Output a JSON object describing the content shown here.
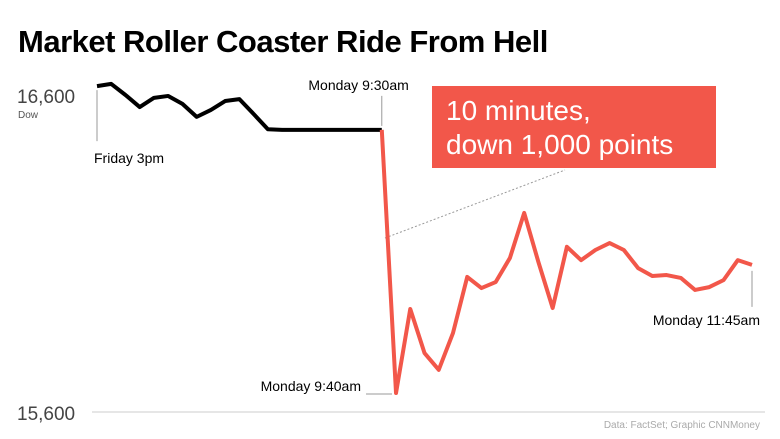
{
  "chart_data": {
    "type": "line",
    "title": "Market Roller Coaster Ride From Hell",
    "y_axis_label": "Dow",
    "source": "Data: FactSet; Graphic CNNMoney",
    "callout": [
      "10 minutes,",
      "down 1,000 points"
    ],
    "callout_color": "#f2574a",
    "categories": [
      "Friday 3pm",
      null,
      null,
      null,
      null,
      null,
      null,
      null,
      null,
      null,
      null,
      null,
      null,
      null,
      null,
      null,
      null,
      null,
      null,
      null,
      "Monday 9:30am",
      "Monday 9:40am",
      null,
      null,
      null,
      null,
      null,
      null,
      null,
      null,
      null,
      null,
      null,
      null,
      null,
      null,
      null,
      null,
      null,
      null,
      null,
      null,
      null,
      null,
      null,
      null,
      "Monday 11:45am"
    ],
    "series": [
      {
        "color": "#000000",
        "values": [
          16628,
          16635,
          16600,
          16562,
          16591,
          16597,
          16572,
          16531,
          16553,
          16581,
          16587,
          16540,
          16492,
          16490,
          16490,
          16490,
          16490,
          16490,
          16490,
          16490,
          16490,
          null,
          null,
          null,
          null,
          null,
          null,
          null,
          null,
          null,
          null,
          null,
          null,
          null,
          null,
          null,
          null,
          null,
          null,
          null,
          null,
          null,
          null,
          null,
          null,
          null,
          null
        ]
      },
      {
        "color": "#f2574a",
        "values": [
          null,
          null,
          null,
          null,
          null,
          null,
          null,
          null,
          null,
          null,
          null,
          null,
          null,
          null,
          null,
          null,
          null,
          null,
          null,
          null,
          16490,
          15660,
          15925,
          15786,
          15733,
          15849,
          16026,
          15991,
          16010,
          16086,
          16228,
          16073,
          15928,
          16121,
          16079,
          16111,
          16133,
          16111,
          16054,
          16029,
          16032,
          16023,
          15985,
          15994,
          16016,
          16079,
          16064
        ]
      }
    ],
    "ylim": [
      15600,
      16600
    ],
    "yticks": [
      {
        "value": 15600,
        "label": "15,600"
      },
      {
        "value": 16600,
        "label": "16,600"
      }
    ]
  }
}
